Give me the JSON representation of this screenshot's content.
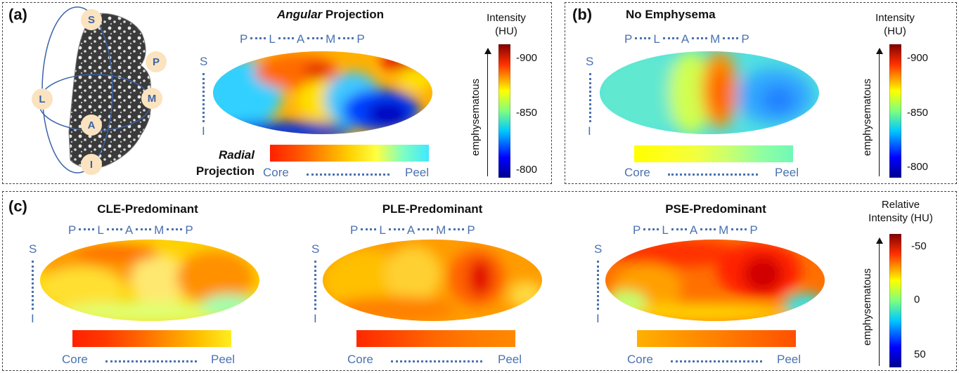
{
  "panels": {
    "a": {
      "label": "(a)",
      "title_italic": "Angular",
      "title_rest": " Projection",
      "lung_markers": [
        "S",
        "P",
        "L",
        "M",
        "A",
        "I"
      ],
      "radial_italic": "Radial",
      "radial_rest": "Projection",
      "cbar_title": [
        "Intensity",
        "(HU)"
      ],
      "cbar_ticks": [
        "-900",
        "-850",
        "-800"
      ]
    },
    "b": {
      "label": "(b)",
      "title": "No Emphysema",
      "cbar_title": [
        "Intensity",
        "(HU)"
      ],
      "cbar_ticks": [
        "-900",
        "-850",
        "-800"
      ]
    },
    "c": {
      "label": "(c)",
      "titles": [
        "CLE-Predominant",
        "PLE-Predominant",
        "PSE-Predominant"
      ],
      "cbar_title": [
        "Relative",
        "Intensity (HU)"
      ],
      "cbar_ticks": [
        "-50",
        "0",
        "50"
      ]
    }
  },
  "axis_top": [
    "P",
    "L",
    "A",
    "M",
    "P"
  ],
  "axis_side": [
    "S",
    "I"
  ],
  "core": "Core",
  "peel": "Peel",
  "emphysematous": "emphysematous",
  "colors": {
    "axis": "#4a72b0",
    "marker_fill": "#fbe3bf"
  }
}
